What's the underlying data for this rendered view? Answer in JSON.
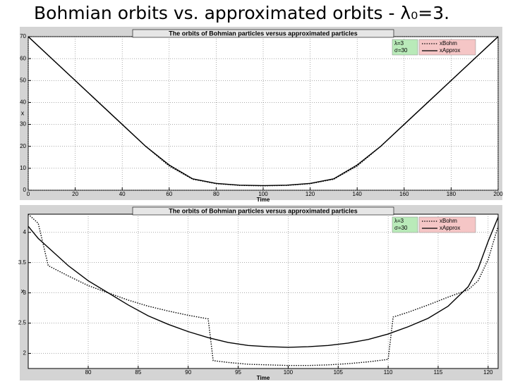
{
  "title": "Bohmian orbits vs. approximated orbits - λ₀=3.",
  "chart_data": [
    {
      "type": "line",
      "title": "The orbits of Bohmian particles versus approximated particles",
      "x_label": "Time",
      "y_label": "x",
      "params": [
        "λ=3",
        "σ=30"
      ],
      "x": [
        0,
        10,
        20,
        30,
        40,
        50,
        60,
        70,
        80,
        90,
        100,
        110,
        120,
        130,
        140,
        150,
        160,
        170,
        180,
        190,
        200
      ],
      "series": [
        {
          "name": "xBohm",
          "color": "#000000",
          "style": "dotted",
          "values": [
            70,
            60,
            50,
            40,
            30,
            20,
            11,
            5,
            3,
            2.2,
            2,
            2.2,
            3,
            5,
            11,
            20,
            30,
            40,
            50,
            60,
            70
          ]
        },
        {
          "name": "xApprox",
          "color": "#000000",
          "style": "solid",
          "values": [
            70,
            60,
            50,
            40,
            30,
            20,
            11.5,
            5.2,
            3.1,
            2.3,
            2.1,
            2.3,
            3.1,
            5.2,
            11.5,
            20,
            30,
            40,
            50,
            60,
            70
          ]
        }
      ],
      "xlim": [
        0,
        200
      ],
      "xticks": [
        0,
        20,
        40,
        60,
        80,
        100,
        120,
        140,
        160,
        180,
        200
      ],
      "ylim": [
        0,
        70
      ],
      "yticks": [
        0,
        10,
        20,
        30,
        40,
        50,
        60,
        70
      ],
      "grid": true
    },
    {
      "type": "line",
      "title": "The orbits of Bohmian particles versus approximated particles",
      "x_label": "Time",
      "y_label": "x",
      "params": [
        "λ=3",
        "σ=30"
      ],
      "x": [
        74,
        75,
        76,
        78,
        80,
        82,
        84,
        86,
        88,
        90,
        92,
        92.5,
        94,
        96,
        98,
        100,
        102,
        104,
        106,
        108,
        110,
        110.5,
        112,
        114,
        116,
        118,
        119,
        120,
        121
      ],
      "series": [
        {
          "name": "xBohm",
          "color": "#000000",
          "style": "dotted",
          "values": [
            4.3,
            4.15,
            3.45,
            3.28,
            3.12,
            3.0,
            2.88,
            2.78,
            2.7,
            2.63,
            2.57,
            1.88,
            1.85,
            1.82,
            1.81,
            1.8,
            1.8,
            1.81,
            1.83,
            1.86,
            1.9,
            2.6,
            2.68,
            2.8,
            2.93,
            3.05,
            3.2,
            3.55,
            4.1
          ]
        },
        {
          "name": "xApprox",
          "color": "#000000",
          "style": "solid",
          "values": [
            4.1,
            3.9,
            3.75,
            3.45,
            3.2,
            3.0,
            2.8,
            2.62,
            2.48,
            2.36,
            2.26,
            2.24,
            2.18,
            2.13,
            2.11,
            2.1,
            2.11,
            2.13,
            2.17,
            2.23,
            2.32,
            2.35,
            2.44,
            2.58,
            2.78,
            3.1,
            3.4,
            3.85,
            4.25
          ]
        }
      ],
      "xlim": [
        74,
        121
      ],
      "xticks": [
        80,
        85,
        90,
        95,
        100,
        105,
        110,
        115,
        120
      ],
      "ylim": [
        1.75,
        4.3
      ],
      "yticks": [
        2,
        2.5,
        3,
        3.5,
        4
      ],
      "grid": true
    }
  ]
}
